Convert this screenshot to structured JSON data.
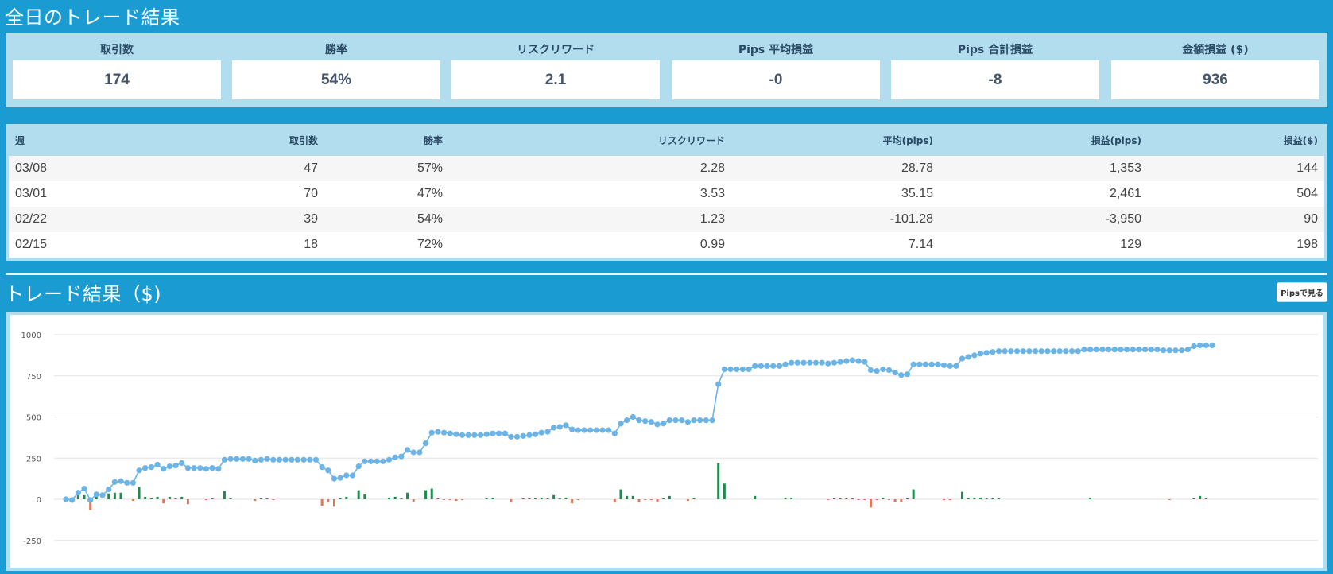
{
  "summary": {
    "title": "全日のトレード結果",
    "metrics": [
      {
        "label": "取引数",
        "value": "174"
      },
      {
        "label": "勝率",
        "value": "54%"
      },
      {
        "label": "リスクリワード",
        "value": "2.1"
      },
      {
        "label": "Pips 平均損益",
        "value": "-0"
      },
      {
        "label": "Pips 合計損益",
        "value": "-8"
      },
      {
        "label": "金額損益 ($)",
        "value": "936"
      }
    ]
  },
  "weekly": {
    "headers": [
      "週",
      "取引数",
      "勝率",
      "リスクリワード",
      "平均(pips)",
      "損益(pips)",
      "損益($)"
    ],
    "rows": [
      [
        "03/08",
        "47",
        "57%",
        "2.28",
        "28.78",
        "1,353",
        "144"
      ],
      [
        "03/01",
        "70",
        "47%",
        "3.53",
        "35.15",
        "2,461",
        "504"
      ],
      [
        "02/22",
        "39",
        "54%",
        "1.23",
        "-101.28",
        "-3,950",
        "90"
      ],
      [
        "02/15",
        "18",
        "72%",
        "0.99",
        "7.14",
        "129",
        "198"
      ]
    ]
  },
  "chart_section": {
    "title": "トレード結果（$)",
    "toggle_button": "Pipsで見る"
  },
  "colors": {
    "background": "#1a9cd3",
    "panel": "#b1ddef",
    "line": "#6cb4e6",
    "bar_positive": "#1e8c4e",
    "bar_negative": "#d9795a"
  },
  "chart_data": {
    "type": "line",
    "ylim": [
      -250,
      1000
    ],
    "yticks": [
      1000,
      750,
      500,
      250,
      0,
      -250
    ],
    "grid": true,
    "series": [
      {
        "type": "line",
        "values": [
          0,
          -5,
          40,
          65,
          -5,
          30,
          25,
          60,
          105,
          110,
          100,
          100,
          175,
          190,
          195,
          210,
          185,
          200,
          205,
          220,
          190,
          190,
          190,
          185,
          190,
          185,
          240,
          245,
          245,
          245,
          245,
          235,
          240,
          245,
          240,
          240,
          240,
          240,
          240,
          240,
          240,
          240,
          195,
          175,
          125,
          130,
          145,
          145,
          200,
          230,
          230,
          230,
          230,
          240,
          255,
          260,
          300,
          285,
          285,
          340,
          405,
          410,
          405,
          400,
          395,
          390,
          390,
          390,
          390,
          395,
          400,
          400,
          400,
          380,
          380,
          385,
          390,
          395,
          405,
          410,
          435,
          440,
          450,
          425,
          420,
          420,
          420,
          420,
          420,
          420,
          400,
          460,
          480,
          500,
          480,
          475,
          470,
          455,
          460,
          480,
          480,
          480,
          470,
          480,
          480,
          480,
          480,
          700,
          790,
          790,
          790,
          790,
          790,
          810,
          810,
          810,
          810,
          810,
          820,
          830,
          830,
          830,
          830,
          830,
          830,
          825,
          830,
          835,
          840,
          845,
          840,
          835,
          785,
          780,
          790,
          785,
          770,
          755,
          760,
          820,
          820,
          820,
          820,
          820,
          815,
          810,
          810,
          855,
          865,
          875,
          885,
          890,
          895,
          900,
          900,
          900,
          900,
          900,
          900,
          900,
          900,
          900,
          900,
          900,
          900,
          900,
          900,
          910,
          910,
          910,
          910,
          910,
          910,
          910,
          910,
          910,
          910,
          910,
          910,
          910,
          905,
          905,
          905,
          905,
          910,
          930,
          935,
          935,
          935
        ]
      },
      {
        "type": "bar",
        "values": [
          0,
          -5,
          45,
          25,
          -65,
          35,
          0,
          35,
          40,
          40,
          0,
          -10,
          75,
          15,
          5,
          15,
          -25,
          15,
          5,
          15,
          -30,
          0,
          0,
          -5,
          5,
          0,
          50,
          5,
          0,
          0,
          0,
          -10,
          5,
          5,
          -5,
          0,
          0,
          0,
          0,
          0,
          0,
          0,
          -40,
          -20,
          -45,
          5,
          15,
          0,
          55,
          30,
          0,
          0,
          0,
          10,
          15,
          5,
          40,
          -15,
          0,
          55,
          65,
          5,
          -5,
          -5,
          -10,
          -5,
          0,
          0,
          0,
          5,
          10,
          0,
          0,
          -20,
          0,
          5,
          5,
          5,
          10,
          5,
          25,
          5,
          10,
          -25,
          -5,
          0,
          0,
          0,
          0,
          0,
          -20,
          60,
          20,
          20,
          -20,
          -5,
          -5,
          -15,
          5,
          20,
          0,
          0,
          -10,
          10,
          0,
          0,
          0,
          220,
          95,
          0,
          0,
          0,
          0,
          20,
          0,
          0,
          0,
          0,
          10,
          10,
          0,
          0,
          0,
          0,
          0,
          -5,
          5,
          5,
          5,
          5,
          -5,
          -5,
          -50,
          -5,
          10,
          -5,
          -15,
          -15,
          5,
          60,
          0,
          0,
          0,
          0,
          -5,
          -5,
          0,
          45,
          10,
          10,
          10,
          5,
          5,
          5,
          0,
          0,
          0,
          0,
          0,
          0,
          0,
          0,
          0,
          0,
          0,
          0,
          0,
          0,
          10,
          0,
          0,
          0,
          0,
          0,
          0,
          0,
          0,
          0,
          0,
          0,
          0,
          -5,
          0,
          0,
          0,
          5,
          20,
          5,
          0,
          0
        ]
      }
    ]
  }
}
